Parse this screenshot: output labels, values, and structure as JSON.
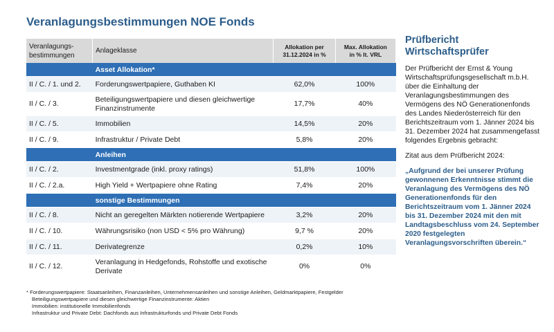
{
  "title": "Veranlagungsbestimmungen NOE Fonds",
  "table": {
    "headers": [
      "Veranlagungs-\nbestimmungen",
      "Anlageklasse",
      "Allokation per\n31.12.2024 in %",
      "Max. Allokation\nin % lt. VRL"
    ],
    "sections": [
      {
        "title": "Asset Allokation*",
        "rows": [
          [
            "II / C. / 1. und 2.",
            "Forderungswertpapiere, Guthaben KI",
            "62,0%",
            "100%"
          ],
          [
            "II / C. / 3.",
            "Beteiligungswertpapiere und diesen gleichwertige Finanzinstrumente",
            "17,7%",
            "40%"
          ],
          [
            "II / C. / 5.",
            "Immobilien",
            "14,5%",
            "20%"
          ],
          [
            "II / C. / 9.",
            "Infrastruktur / Private Debt",
            "5,8%",
            "20%"
          ]
        ]
      },
      {
        "title": "Anleihen",
        "rows": [
          [
            "II / C. / 2.",
            "Investmentgrade (inkl. proxy ratings)",
            "51,8%",
            "100%"
          ],
          [
            "II / C. / 2.a.",
            "High Yield + Wertpapiere ohne Rating",
            "7,4%",
            "20%"
          ]
        ]
      },
      {
        "title": "sonstige Bestimmungen",
        "rows": [
          [
            "II / C. / 8.",
            "Nicht an geregelten Märkten notierende Wertpapiere",
            "3,2%",
            "20%"
          ],
          [
            "II / C. / 10.",
            "Währungsrisiko (non USD < 5% pro Währung)",
            "9,7 %",
            "20%"
          ],
          [
            "II / C. / 11.",
            "Derivategrenze",
            "0,2%",
            "10%"
          ],
          [
            "II / C. / 12.",
            "Veranlagung in Hedgefonds, Rohstoffe und exotische Derivate",
            "0%",
            "0%"
          ]
        ]
      }
    ]
  },
  "footnote": [
    "* Forderungswertpapiere: Staatsanleihen, Finanzanleihen, Unternehmensanleihen und sonstige Anleihen, Geldmarktpapiere, Festgelder",
    "Beteiligungswertpapiere und diesen gleichwertige Finanzinstrumente: Aktien",
    "Immobilien: institutionelle Immobilienfonds",
    "Infrastruktur und Private Debt: Dachfonds aus Infrastrukturfonds und Private Debt Fonds"
  ],
  "sidebar": {
    "heading": "Prüfbericht Wirtschaftsprüfer",
    "paragraph": "Der Prüfbericht der Ernst & Young Wirtschaftsprüfungsgesellschaft m.b.H. über die Einhaltung der Veranlagungsbestimmungen des Vermögens des NÖ Generationenfonds des Landes Niederösterreich für den Berichtszeitraum vom 1. Jänner 2024 bis 31. Dezember 2024 hat zusammengefasst folgendes Ergebnis gebracht:",
    "quote_intro": "Zitat aus dem Prüfbericht 2024:",
    "quote": "„Aufgrund der bei unserer Prüfung gewonnenen Erkenntnisse stimmt die Veranlagung des Vermögens des NÖ Generationenfonds für den Berichtszeitraum vom 1. Jänner 2024 bis 31. Dezember 2024 mit den mit Landtagsbeschluss vom 24. September 2020 festgelegten Veranlagungsvorschriften überein.“"
  }
}
